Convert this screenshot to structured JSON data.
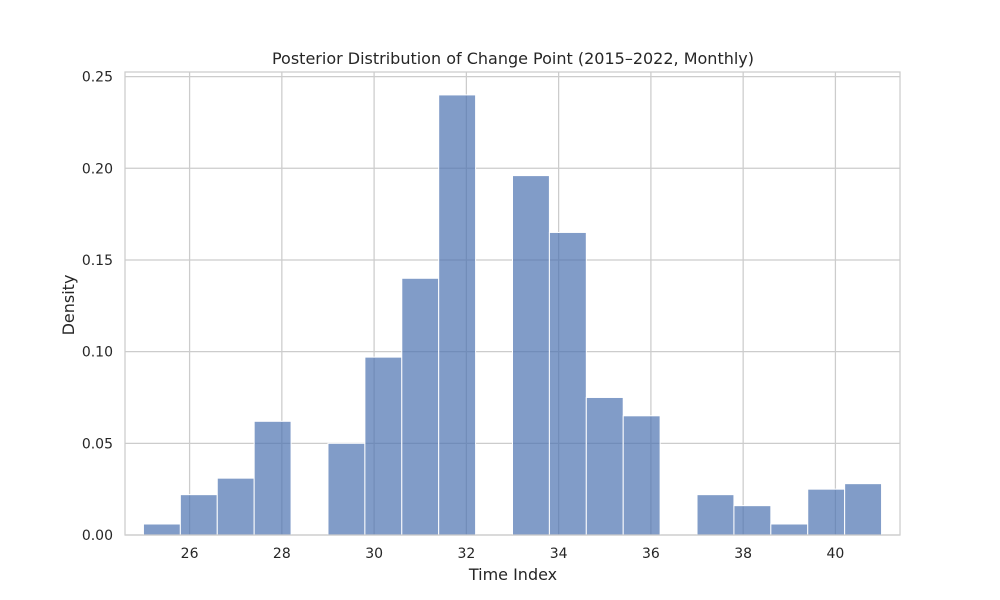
{
  "chart_data": {
    "type": "bar",
    "title": "Posterior Distribution of Change Point (2015–2022, Monthly)",
    "xlabel": "Time Index",
    "ylabel": "Density",
    "xlim": [
      24.6,
      41.4
    ],
    "ylim": [
      0,
      0.2525
    ],
    "xticks": [
      26,
      28,
      30,
      32,
      34,
      36,
      38,
      40
    ],
    "yticks": [
      0.0,
      0.05,
      0.1,
      0.15,
      0.2,
      0.25
    ],
    "ytick_labels": [
      "0.00",
      "0.05",
      "0.10",
      "0.15",
      "0.20",
      "0.25"
    ],
    "grid": true,
    "bars": [
      {
        "x0": 25.0,
        "x1": 25.8,
        "value": 0.006
      },
      {
        "x0": 25.8,
        "x1": 26.6,
        "value": 0.022
      },
      {
        "x0": 26.6,
        "x1": 27.4,
        "value": 0.031
      },
      {
        "x0": 27.4,
        "x1": 28.2,
        "value": 0.062
      },
      {
        "x0": 28.2,
        "x1": 29.0,
        "value": 0.0
      },
      {
        "x0": 29.0,
        "x1": 29.8,
        "value": 0.05
      },
      {
        "x0": 29.8,
        "x1": 30.6,
        "value": 0.097
      },
      {
        "x0": 30.6,
        "x1": 31.4,
        "value": 0.14
      },
      {
        "x0": 31.4,
        "x1": 32.2,
        "value": 0.24
      },
      {
        "x0": 32.2,
        "x1": 33.0,
        "value": 0.0
      },
      {
        "x0": 33.0,
        "x1": 33.8,
        "value": 0.196
      },
      {
        "x0": 33.8,
        "x1": 34.6,
        "value": 0.165
      },
      {
        "x0": 34.6,
        "x1": 35.4,
        "value": 0.075
      },
      {
        "x0": 35.4,
        "x1": 36.2,
        "value": 0.065
      },
      {
        "x0": 36.2,
        "x1": 37.0,
        "value": 0.0
      },
      {
        "x0": 37.0,
        "x1": 37.8,
        "value": 0.022
      },
      {
        "x0": 37.8,
        "x1": 38.6,
        "value": 0.016
      },
      {
        "x0": 38.6,
        "x1": 39.4,
        "value": 0.006
      },
      {
        "x0": 39.4,
        "x1": 40.2,
        "value": 0.025
      },
      {
        "x0": 40.2,
        "x1": 41.0,
        "value": 0.028
      }
    ],
    "colors": {
      "bar_fill": "#4C72B0",
      "bar_edge": "#ffffff",
      "grid": "#cccccc",
      "axes": "#cccccc"
    }
  }
}
